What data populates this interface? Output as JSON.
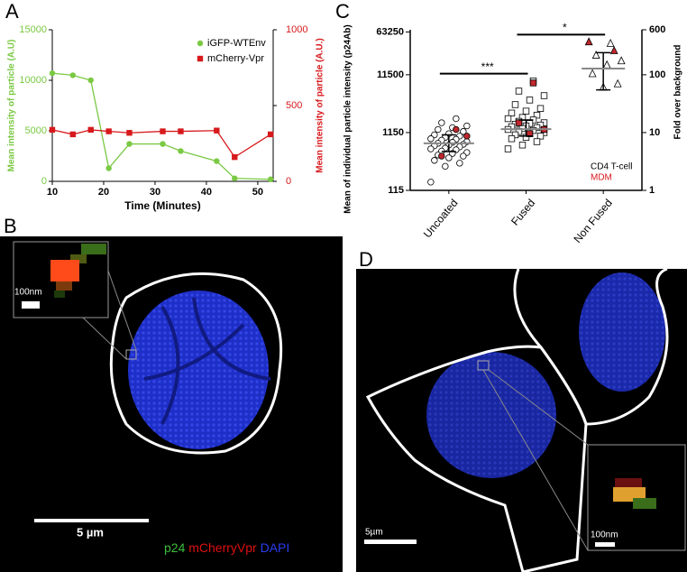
{
  "panel_labels": [
    "A",
    "B",
    "C",
    "D"
  ],
  "chart_data": [
    {
      "type": "line",
      "x_label": "Time (Minutes)",
      "y_label": "Mean intensity of particle (A.U)",
      "y2_label": "Mean intensity of particle (A.U.)",
      "x": [
        10,
        14,
        17.5,
        21,
        25,
        31.5,
        35,
        42,
        45.5,
        52.5
      ],
      "xlim": [
        10,
        53
      ],
      "xticks": [
        10,
        20,
        30,
        40,
        50
      ],
      "ylim": [
        0,
        15000
      ],
      "yticks": [
        0,
        5000,
        10000,
        15000
      ],
      "y2lim": [
        0,
        1000
      ],
      "y2ticks": [
        0,
        500,
        1000
      ],
      "legend": "upper right",
      "series": [
        {
          "name": "iGFP-WTEnv",
          "color": "#7ac943",
          "marker": "circle",
          "values": [
            10700,
            10500,
            10000,
            1300,
            3700,
            3700,
            3000,
            2000,
            300,
            200
          ]
        },
        {
          "name": "mCherry-Vpr",
          "color": "#d7191c",
          "marker": "square",
          "axis": "y2",
          "values": [
            340,
            310,
            340,
            330,
            320,
            330,
            330,
            335,
            160,
            310
          ]
        }
      ]
    },
    {
      "type": "scatter",
      "y_label": "Mean of individual particle intensity (p24Ab)",
      "y2_label": "Fold over background",
      "categories": [
        "Uncoated",
        "Fused",
        "Non Fused"
      ],
      "markers": [
        "circle",
        "square",
        "triangle"
      ],
      "yscale": "log",
      "ylim": [
        115,
        69000
      ],
      "yticks": [
        115,
        1150,
        11500,
        63250
      ],
      "y2lim": [
        1,
        600
      ],
      "y2ticks": [
        1,
        10,
        100,
        600
      ],
      "legend": "lower right",
      "series": [
        {
          "name": "CD4 T-cell",
          "color": "#ffffff",
          "label_color": "#000000",
          "x": [
            "Uncoated",
            "Uncoated",
            "Uncoated",
            "Uncoated",
            "Uncoated",
            "Uncoated",
            "Uncoated",
            "Uncoated",
            "Uncoated",
            "Uncoated",
            "Uncoated",
            "Uncoated",
            "Uncoated",
            "Uncoated",
            "Uncoated",
            "Uncoated",
            "Uncoated",
            "Uncoated",
            "Uncoated",
            "Uncoated",
            "Uncoated",
            "Uncoated",
            "Uncoated",
            "Uncoated",
            "Uncoated",
            "Uncoated",
            "Uncoated",
            "Uncoated",
            "Uncoated",
            "Uncoated",
            "Uncoated",
            "Uncoated",
            "Uncoated",
            "Fused",
            "Fused",
            "Fused",
            "Fused",
            "Fused",
            "Fused",
            "Fused",
            "Fused",
            "Fused",
            "Fused",
            "Fused",
            "Fused",
            "Fused",
            "Fused",
            "Fused",
            "Fused",
            "Fused",
            "Fused",
            "Fused",
            "Fused",
            "Fused",
            "Fused",
            "Fused",
            "Fused",
            "Fused",
            "Fused",
            "Fused",
            "Fused",
            "Fused",
            "Fused",
            "Fused",
            "Fused",
            "Fused",
            "Non Fused",
            "Non Fused",
            "Non Fused",
            "Non Fused",
            "Non Fused",
            "Non Fused",
            "Non Fused"
          ],
          "values": [
            2000,
            1700,
            1500,
            1400,
            1300,
            1200,
            1100,
            1050,
            1000,
            950,
            900,
            880,
            850,
            800,
            780,
            750,
            720,
            700,
            680,
            650,
            620,
            600,
            580,
            550,
            520,
            500,
            470,
            450,
            420,
            380,
            340,
            300,
            160,
            9000,
            6000,
            5000,
            4200,
            3500,
            3000,
            2700,
            2500,
            2300,
            2100,
            2000,
            1900,
            1800,
            1700,
            1650,
            1600,
            1550,
            1500,
            1450,
            1400,
            1350,
            1300,
            1250,
            1200,
            1150,
            1100,
            1050,
            1000,
            950,
            900,
            800,
            700,
            600,
            40000,
            25000,
            20000,
            17000,
            12000,
            8000,
            7000
          ]
        },
        {
          "name": "MDM",
          "color": "#c0272d",
          "label_color": "#d7191c",
          "x": [
            "Uncoated",
            "Uncoated",
            "Uncoated",
            "Fused",
            "Fused",
            "Fused",
            "Fused",
            "Non Fused",
            "Non Fused"
          ],
          "values": [
            1300,
            450,
            1000,
            8300,
            1700,
            1300,
            1100,
            42600,
            30000
          ]
        }
      ],
      "means": [
        750,
        1320,
        14700
      ],
      "error_low": [
        540,
        1000,
        6300
      ],
      "error_high": [
        1050,
        1900,
        27700
      ],
      "significance": [
        {
          "between": [
            "Uncoated",
            "Fused"
          ],
          "label": "***"
        },
        {
          "between": [
            "Fused",
            "Non Fused"
          ],
          "label": "*"
        }
      ]
    }
  ],
  "image_b": {
    "inset_scale": "100nm",
    "scale_bar": "5 µm",
    "stain_legend": [
      "p24",
      "mCherryVpr",
      "DAPI"
    ]
  },
  "image_d": {
    "inset_scale": "100nm",
    "scale_bar": "5µm"
  }
}
